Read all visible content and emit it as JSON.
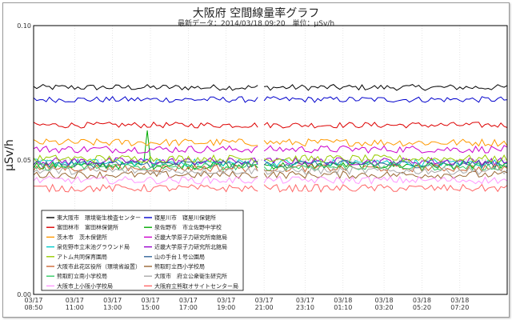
{
  "chart_data": {
    "type": "line",
    "title": "大阪府 空間線量率グラフ",
    "subtitle": {
      "updated_label": "最新データ：2014/03/18 09:20",
      "unit_label": "単位：μSv/h"
    },
    "ylabel": "μSv/h",
    "ylim": [
      0.0,
      0.1
    ],
    "y_ticks": [
      "0.00",
      "0.05",
      "0.10"
    ],
    "y_tick_values": [
      0.0,
      0.05,
      0.1
    ],
    "x_range_hours": [
      0,
      25
    ],
    "x_ticks": [
      {
        "date": "03/17",
        "time": "08:50",
        "t": 0
      },
      {
        "date": "03/17",
        "time": "11:00",
        "t": 2.1667
      },
      {
        "date": "03/17",
        "time": "13:00",
        "t": 4.1667
      },
      {
        "date": "03/17",
        "time": "15:00",
        "t": 6.1667
      },
      {
        "date": "03/17",
        "time": "17:00",
        "t": 8.1667
      },
      {
        "date": "03/17",
        "time": "19:00",
        "t": 10.1667
      },
      {
        "date": "03/17",
        "time": "21:00",
        "t": 12.1667
      },
      {
        "date": "03/17",
        "time": "23:10",
        "t": 14.3333
      },
      {
        "date": "03/18",
        "time": "01:10",
        "t": 16.3333
      },
      {
        "date": "03/18",
        "time": "03:20",
        "t": 18.5
      },
      {
        "date": "03/18",
        "time": "05:20",
        "t": 20.5
      },
      {
        "date": "03/18",
        "time": "07:20",
        "t": 22.5
      }
    ],
    "gap_hours": [
      11.9,
      12.15
    ],
    "grid": true,
    "legend_position": "bottom-left",
    "series": [
      {
        "name": "東大阪市　環境衛生検査センター",
        "color": "#000000",
        "level": 0.077
      },
      {
        "name": "寝屋川市　寝屋川保健所",
        "color": "#0000cc",
        "level": 0.0725
      },
      {
        "name": "富田林市　富田林保健所",
        "color": "#dd0000",
        "level": 0.063
      },
      {
        "name": "泉佐野市　市立佐野中学校",
        "color": "#00aa00",
        "level": 0.048
      },
      {
        "name": "茨木市　茨木保健所",
        "color": "#ff9900",
        "level": 0.0565
      },
      {
        "name": "近畿大学原子力研究所南館局",
        "color": "#cc00cc",
        "level": 0.054
      },
      {
        "name": "泉佐野市立末池グラウンド局",
        "color": "#00cccc",
        "level": 0.049
      },
      {
        "name": "近畿大学原子力研究所北館局",
        "color": "#9900cc",
        "level": 0.0495
      },
      {
        "name": "アトム共同保育園局",
        "color": "#99cc00",
        "level": 0.0505
      },
      {
        "name": "山の手台１号公園局",
        "color": "#336699",
        "level": 0.0485
      },
      {
        "name": "大阪市此花区役所（環境省設置）",
        "color": "#cc6633",
        "level": 0.047
      },
      {
        "name": "熊取町立西小学校局",
        "color": "#996633",
        "level": 0.0445
      },
      {
        "name": "熊取町立南小学校局",
        "color": "#33cc66",
        "level": 0.0475
      },
      {
        "name": "大阪市　府立公衆衛生研究所",
        "color": "#aaaaaa",
        "level": 0.046
      },
      {
        "name": "大阪市上小阪小学校局",
        "color": "#ff99ff",
        "level": 0.0425
      },
      {
        "name": "大阪府立熊取オサイトセンター局",
        "color": "#ff6666",
        "level": 0.0395
      }
    ],
    "annotations": [
      {
        "series": "泉佐野市　市立佐野中学校",
        "t": 6.0,
        "value": 0.061
      }
    ]
  }
}
